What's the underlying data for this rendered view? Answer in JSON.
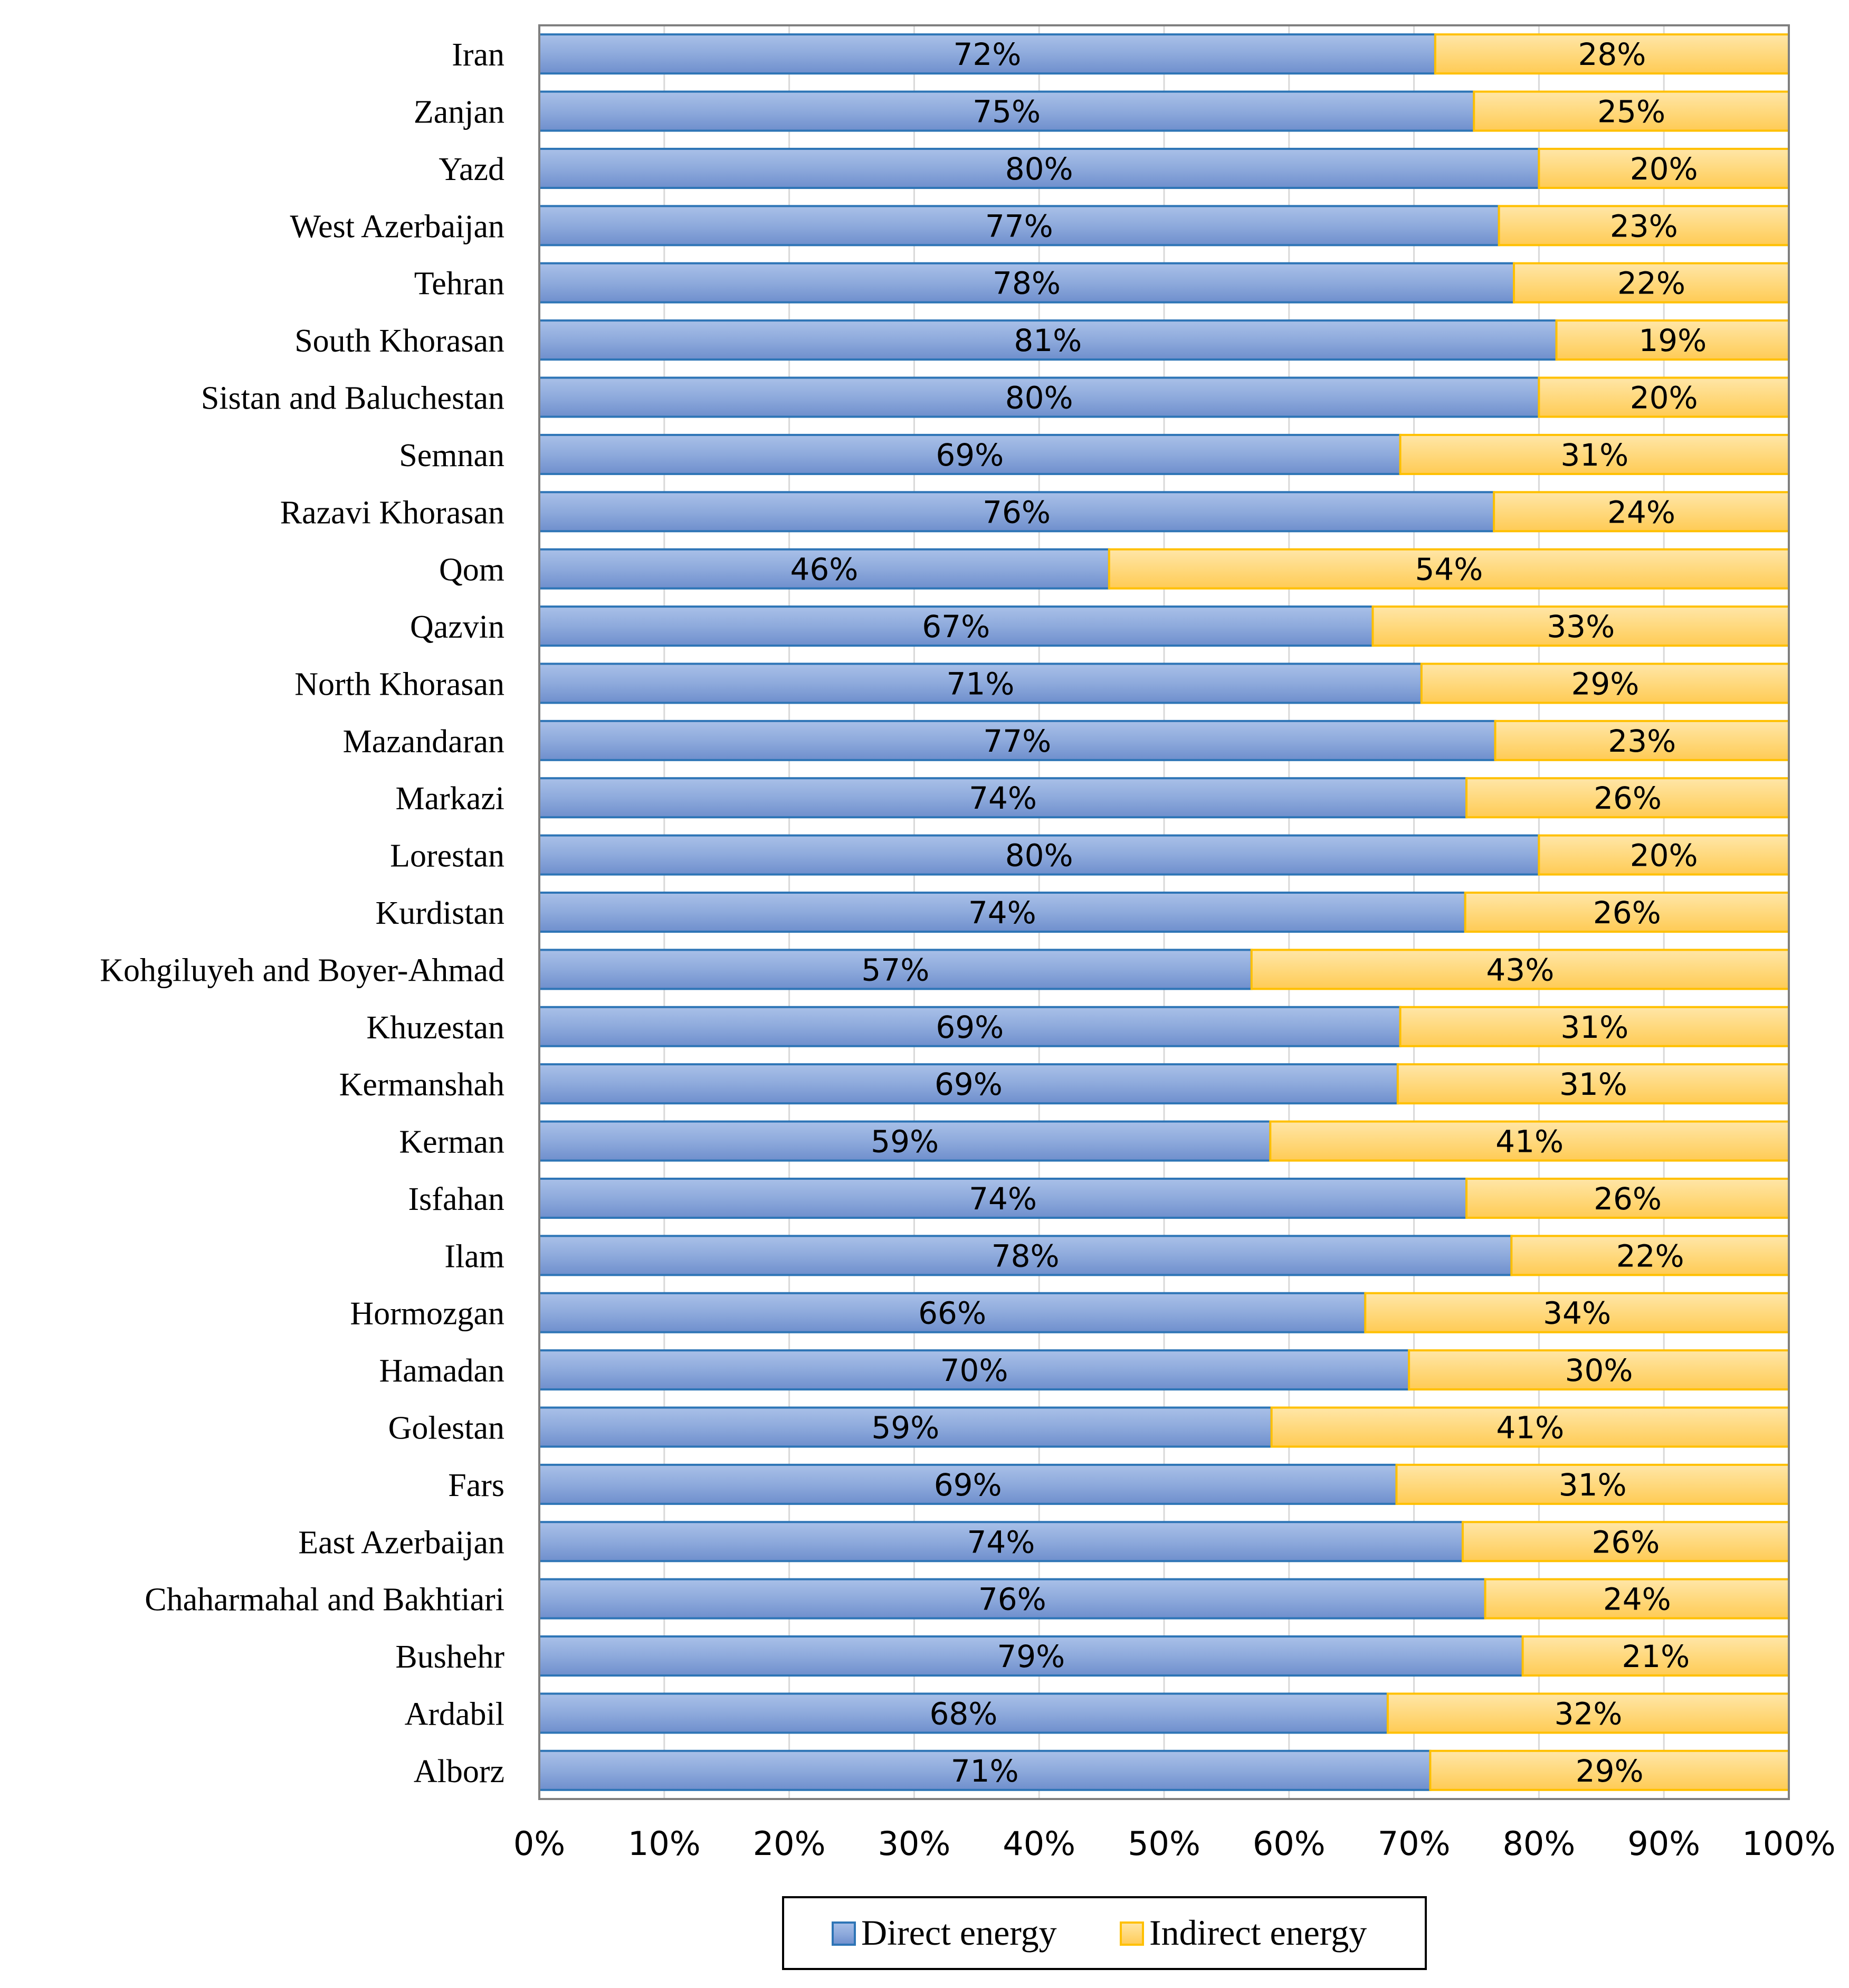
{
  "chart_data": {
    "type": "bar",
    "orientation": "horizontal",
    "stacked": "percent",
    "categories": [
      "Iran",
      "Zanjan",
      "Yazd",
      "West Azerbaijan",
      "Tehran",
      "South Khorasan",
      "Sistan and Baluchestan",
      "Semnan",
      "Razavi Khorasan",
      "Qom",
      "Qazvin",
      "North Khorasan",
      "Mazandaran",
      "Markazi",
      "Lorestan",
      "Kurdistan",
      "Kohgiluyeh and Boyer-Ahmad",
      "Khuzestan",
      "Kermanshah",
      "Kerman",
      "Isfahan",
      "Ilam",
      "Hormozgan",
      "Hamadan",
      "Golestan",
      "Fars",
      "East Azerbaijan",
      "Chaharmahal and Bakhtiari",
      "Bushehr",
      "Ardabil",
      "Alborz"
    ],
    "series": [
      {
        "name": "Direct energy",
        "color": "#8faadc",
        "edge_color": "#2e75b6",
        "values": [
          71.7,
          74.8,
          80.0,
          76.8,
          78.0,
          81.4,
          80.0,
          68.9,
          76.4,
          45.6,
          66.7,
          70.6,
          76.5,
          74.2,
          80.0,
          74.1,
          57.0,
          68.9,
          68.7,
          58.5,
          74.2,
          77.8,
          66.1,
          69.6,
          58.6,
          68.6,
          73.9,
          75.7,
          78.7,
          67.9,
          71.3
        ],
        "labels": [
          "72%",
          "75%",
          "80%",
          "77%",
          "78%",
          "81%",
          "80%",
          "69%",
          "76%",
          "46%",
          "67%",
          "71%",
          "77%",
          "74%",
          "80%",
          "74%",
          "57%",
          "69%",
          "69%",
          "59%",
          "74%",
          "78%",
          "66%",
          "70%",
          "59%",
          "69%",
          "74%",
          "76%",
          "79%",
          "68%",
          "71%"
        ]
      },
      {
        "name": "Indirect energy",
        "color": "#ffd97a",
        "edge_color": "#ffc000",
        "values": [
          28.3,
          25.2,
          20.0,
          23.2,
          22.0,
          18.6,
          20.0,
          31.1,
          23.6,
          54.4,
          33.3,
          29.4,
          23.5,
          25.8,
          20.0,
          25.9,
          43.0,
          31.1,
          31.3,
          41.5,
          25.8,
          22.2,
          33.9,
          30.4,
          41.4,
          31.4,
          26.1,
          24.3,
          21.3,
          32.1,
          28.7
        ],
        "labels": [
          "28%",
          "25%",
          "20%",
          "23%",
          "22%",
          "19%",
          "20%",
          "31%",
          "24%",
          "54%",
          "33%",
          "29%",
          "23%",
          "26%",
          "20%",
          "26%",
          "43%",
          "31%",
          "31%",
          "41%",
          "26%",
          "22%",
          "34%",
          "30%",
          "41%",
          "31%",
          "26%",
          "24%",
          "21%",
          "32%",
          "29%"
        ]
      }
    ],
    "xlim": [
      0,
      100
    ],
    "xticks": [
      "0%",
      "10%",
      "20%",
      "30%",
      "40%",
      "50%",
      "60%",
      "70%",
      "80%",
      "90%",
      "100%"
    ],
    "xtick_values": [
      0,
      10,
      20,
      30,
      40,
      50,
      60,
      70,
      80,
      90,
      100
    ],
    "grid": "vertical",
    "legend": {
      "position": "bottom",
      "entries": [
        "Direct energy",
        "Indirect energy"
      ]
    }
  }
}
